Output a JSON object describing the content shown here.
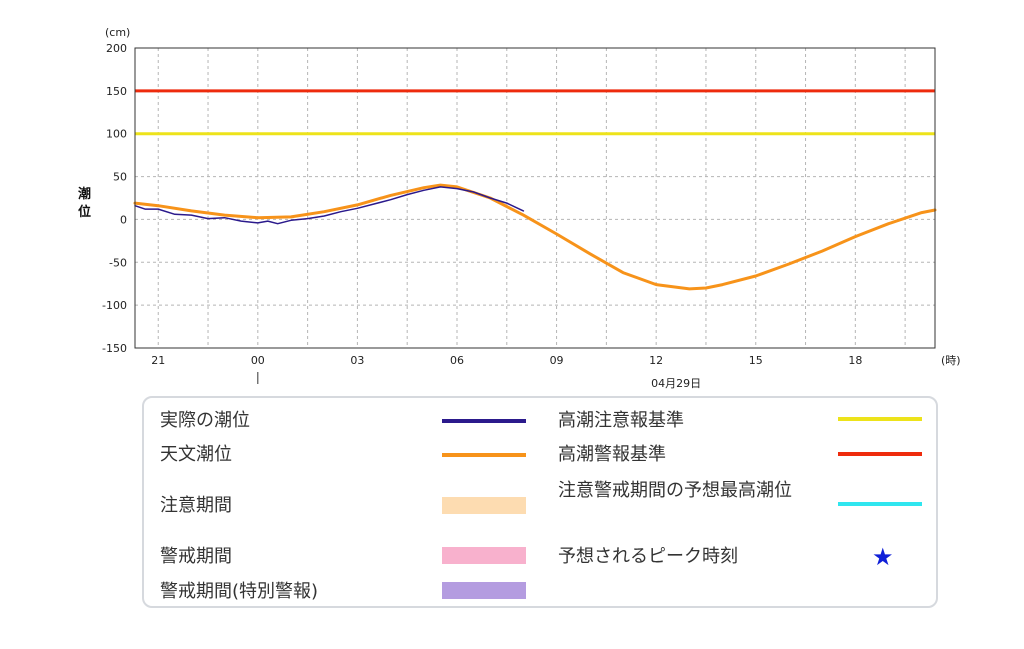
{
  "chart_data": {
    "type": "line",
    "y_unit": "(cm)",
    "x_unit": "(時)",
    "ylabel": "潮位",
    "date_label": "04月29日",
    "ylim": [
      -150,
      200
    ],
    "y_ticks": [
      "200",
      "150",
      "100",
      "50",
      "0",
      "-50",
      "-100",
      "-150"
    ],
    "y_tick_values": [
      200,
      150,
      100,
      50,
      0,
      -50,
      -100,
      -150
    ],
    "x_hour_range": [
      20,
      28
    ],
    "x_tick_labels": [
      "21",
      "00",
      "03",
      "06",
      "09",
      "12",
      "15",
      "18"
    ],
    "x_tick_hours": [
      21,
      24,
      27,
      30,
      33,
      36,
      39,
      42
    ],
    "x_grid_hours": [
      21,
      22.5,
      24,
      25.5,
      27,
      28.5,
      30,
      31.5,
      33,
      34.5,
      36,
      37.5,
      39,
      40.5,
      42,
      43.5
    ],
    "x_range_hours": [
      20.3,
      44.4
    ],
    "grid": true,
    "reference_lines": [
      {
        "name": "高潮注意報基準",
        "value": 100,
        "color": "#ede31a"
      },
      {
        "name": "高潮警報基準",
        "value": 150,
        "color": "#ee2b0d"
      }
    ],
    "series": [
      {
        "name": "天文潮位",
        "color": "#f7931a",
        "x": [
          20.3,
          21,
          22,
          23,
          24,
          25,
          26,
          27,
          28,
          29,
          29.5,
          30,
          31,
          32,
          33,
          34,
          35,
          36,
          37,
          37.5,
          38,
          39,
          40,
          41,
          42,
          43,
          44,
          44.4
        ],
        "y": [
          19,
          16,
          10,
          5,
          2,
          3,
          9,
          17,
          28,
          37,
          40,
          38,
          25,
          5,
          -17,
          -40,
          -62,
          -76,
          -81,
          -80,
          -76,
          -66,
          -52,
          -37,
          -20,
          -5,
          8,
          11
        ]
      },
      {
        "name": "実際の潮位",
        "color": "#2b1a8c",
        "x": [
          20.3,
          20.6,
          21,
          21.5,
          22,
          22.5,
          23,
          23.5,
          24,
          24.3,
          24.6,
          25,
          25.5,
          26,
          26.5,
          27,
          27.5,
          28,
          28.5,
          29,
          29.5,
          30,
          30.5,
          31,
          31.5,
          32
        ],
        "y": [
          16,
          12,
          12,
          6,
          5,
          1,
          2,
          -2,
          -4,
          -2,
          -5,
          -1,
          1,
          4,
          9,
          13,
          18,
          23,
          29,
          34,
          38,
          36,
          32,
          25,
          19,
          10
        ]
      }
    ]
  },
  "legend": {
    "items": [
      {
        "label": "実際の潮位",
        "kind": "line",
        "color": "#2b1a8c"
      },
      {
        "label": "天文潮位",
        "kind": "line",
        "color": "#f7931a"
      },
      {
        "label": "注意期間",
        "kind": "box",
        "color": "#fddcb1"
      },
      {
        "label": "警戒期間",
        "kind": "box",
        "color": "#f8b1cd"
      },
      {
        "label": "警戒期間(特別警報)",
        "kind": "box",
        "color": "#b49ce0"
      },
      {
        "label": "高潮注意報基準",
        "kind": "line",
        "color": "#ede31a"
      },
      {
        "label": "高潮警報基準",
        "kind": "line",
        "color": "#ee2b0d"
      },
      {
        "label": "注意警戒期間の予想最高潮位",
        "kind": "line",
        "color": "#2fe6ef"
      },
      {
        "label": "予想されるピーク時刻",
        "kind": "star",
        "color": "#1020d8",
        "glyph": "★"
      }
    ]
  }
}
